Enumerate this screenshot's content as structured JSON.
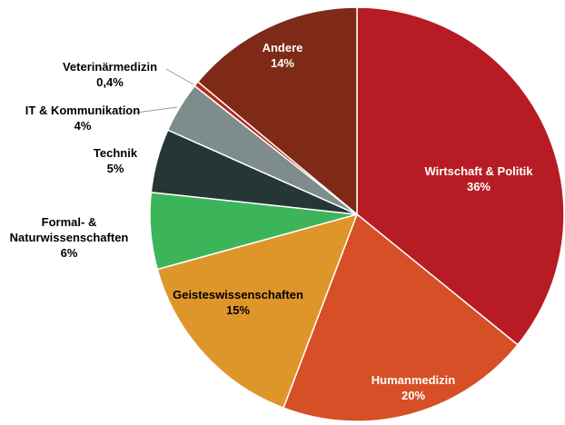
{
  "chart_data": {
    "type": "pie",
    "categories": [
      "Wirtschaft & Politik",
      "Humanmedizin",
      "Geisteswissenschaften",
      "Formal- & Naturwissenschaften",
      "Technik",
      "IT & Kommunikation",
      "Veterinärmedizin",
      "Andere"
    ],
    "values": [
      36,
      20,
      15,
      6,
      5,
      4,
      0.4,
      14
    ],
    "value_labels": [
      "36%",
      "20%",
      "15%",
      "6%",
      "5%",
      "4%",
      "0,4%",
      "14%"
    ],
    "colors": [
      "#b71c24",
      "#d64f27",
      "#de962b",
      "#3cb55a",
      "#263535",
      "#7f8c8c",
      "#b5281f",
      "#7e2a16"
    ]
  }
}
